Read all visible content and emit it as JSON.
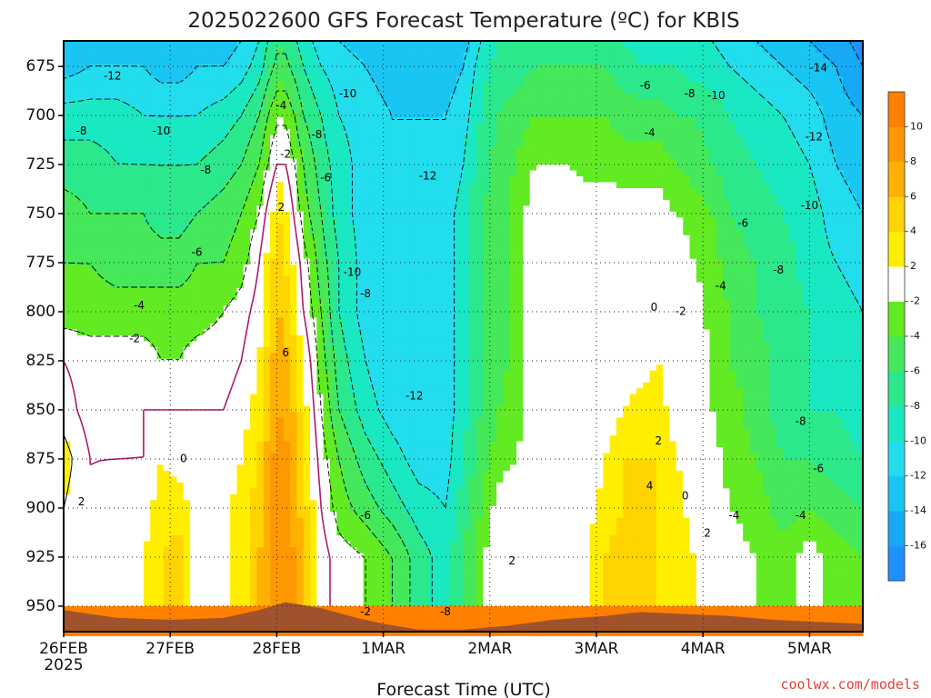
{
  "colors": {
    "cbar": [
      "#1e90ff",
      "#16aaf6",
      "#19c5f2",
      "#22ddee",
      "#19e8c2",
      "#2be88c",
      "#44e85a",
      "#62ea22",
      "#ffffff",
      "#ffee00",
      "#ffd400",
      "#ffb000",
      "#ff9800",
      "#ff8000"
    ],
    "terrain": "#a0522d",
    "contour_zero": "#b0196e",
    "contour_other": "#000000"
  },
  "chart_data": {
    "type": "heatmap",
    "title": "2025022600 GFS Forecast Temperature (ºC) for KBIS",
    "xlabel": "Forecast Time (UTC)",
    "ylabel": "",
    "credit": "coolwx.com/models",
    "x_ticks": [
      {
        "label": "26FEB",
        "sub": "2025",
        "hour": 0
      },
      {
        "label": "27FEB",
        "sub": "",
        "hour": 24
      },
      {
        "label": "28FEB",
        "sub": "",
        "hour": 48
      },
      {
        "label": "1MAR",
        "sub": "",
        "hour": 72
      },
      {
        "label": "2MAR",
        "sub": "",
        "hour": 96
      },
      {
        "label": "3MAR",
        "sub": "",
        "hour": 120
      },
      {
        "label": "4MAR",
        "sub": "",
        "hour": 144
      },
      {
        "label": "5MAR",
        "sub": "",
        "hour": 168
      }
    ],
    "x_range_hours": [
      0,
      180
    ],
    "y_ticks": [
      "675",
      "700",
      "725",
      "750",
      "775",
      "800",
      "825",
      "850",
      "875",
      "900",
      "925",
      "950"
    ],
    "y_values": [
      675,
      700,
      725,
      750,
      775,
      800,
      825,
      850,
      875,
      900,
      925,
      950
    ],
    "y_range_hpa": [
      662,
      963
    ],
    "colorbar": {
      "bounds": [
        -18,
        -16,
        -14,
        -12,
        -10,
        -8,
        -6,
        -4,
        -2,
        2,
        4,
        6,
        8,
        10,
        12
      ],
      "labels": [
        "-16",
        "-14",
        "-12",
        "-10",
        "-8",
        "-6",
        "-4",
        "-2",
        "2",
        "4",
        "6",
        "8",
        "10"
      ]
    },
    "grid": true,
    "temperature_profiles": [
      {
        "hour": 0,
        "t": [
          -13,
          -9,
          -7,
          -5,
          -4,
          -3,
          0,
          1,
          3,
          2,
          2
        ]
      },
      {
        "hour": 6,
        "t": [
          -12,
          -9,
          -7,
          -6,
          -4,
          -3,
          -1,
          -1,
          0,
          0,
          0
        ]
      },
      {
        "hour": 12,
        "t": [
          -12,
          -9,
          -8,
          -6,
          -5,
          -3,
          -1,
          -1,
          0,
          1,
          1
        ]
      },
      {
        "hour": 18,
        "t": [
          -12,
          -10,
          -8,
          -6,
          -5,
          -3,
          -1,
          0,
          0,
          1,
          2
        ]
      },
      {
        "hour": 22,
        "t": [
          -13,
          -10,
          -8,
          -7,
          -5,
          -3,
          -2,
          0,
          2,
          3,
          4
        ]
      },
      {
        "hour": 26,
        "t": [
          -13,
          -10,
          -8,
          -7,
          -5,
          -3,
          -2,
          0,
          1,
          3,
          5
        ]
      },
      {
        "hour": 30,
        "t": [
          -12,
          -10,
          -8,
          -6,
          -4,
          -3,
          -1,
          0,
          1,
          1,
          1
        ]
      },
      {
        "hour": 36,
        "t": [
          -12,
          -9,
          -7,
          -5,
          -4,
          -2,
          -1,
          0,
          1,
          1,
          1
        ]
      },
      {
        "hour": 40,
        "t": [
          -11,
          -8,
          -6,
          -4,
          -3,
          -1,
          0,
          1,
          2,
          3,
          3
        ]
      },
      {
        "hour": 44,
        "t": [
          -9,
          -6,
          -4,
          -2,
          0,
          1,
          2,
          3,
          4,
          5,
          6
        ]
      },
      {
        "hour": 47,
        "t": [
          -6,
          -3,
          -1,
          2,
          4,
          5,
          6,
          7,
          8,
          8,
          8
        ]
      },
      {
        "hour": 49,
        "t": [
          -5,
          -2,
          1,
          4,
          5,
          6,
          7,
          8,
          9,
          10,
          10
        ]
      },
      {
        "hour": 51,
        "t": [
          -6,
          -3,
          -1,
          1,
          3,
          4,
          6,
          7,
          8,
          8,
          9
        ]
      },
      {
        "hour": 54,
        "t": [
          -8,
          -6,
          -4,
          -3,
          -1,
          0,
          2,
          3,
          4,
          5,
          6
        ]
      },
      {
        "hour": 58,
        "t": [
          -10,
          -8,
          -7,
          -6,
          -5,
          -4,
          -3,
          -2,
          -1,
          0,
          1
        ]
      },
      {
        "hour": 62,
        "t": [
          -11,
          -10,
          -9,
          -9,
          -8,
          -8,
          -7,
          -6,
          -4,
          -3,
          -1
        ]
      },
      {
        "hour": 68,
        "t": [
          -12,
          -11,
          -11,
          -11,
          -11,
          -11,
          -10,
          -9,
          -7,
          -5,
          -2
        ]
      },
      {
        "hour": 74,
        "t": [
          -13,
          -12,
          -12,
          -12,
          -12,
          -12,
          -12,
          -11,
          -9,
          -7,
          -4
        ]
      },
      {
        "hour": 80,
        "t": [
          -13,
          -12,
          -12,
          -12,
          -12,
          -12,
          -12,
          -12,
          -11,
          -9,
          -7
        ]
      },
      {
        "hour": 86,
        "t": [
          -13,
          -12,
          -12,
          -11,
          -11,
          -11,
          -11,
          -11,
          -11,
          -10,
          -9
        ]
      },
      {
        "hour": 90,
        "t": [
          -12,
          -11,
          -10,
          -9,
          -9,
          -9,
          -9,
          -9,
          -8,
          -7,
          -6
        ]
      },
      {
        "hour": 94,
        "t": [
          -9,
          -8,
          -7,
          -6,
          -6,
          -6,
          -6,
          -6,
          -5,
          -4,
          -3
        ]
      },
      {
        "hour": 98,
        "t": [
          -7,
          -6,
          -5,
          -5,
          -5,
          -5,
          -5,
          -4,
          -3,
          -1,
          1
        ]
      },
      {
        "hour": 102,
        "t": [
          -7,
          -5,
          -4,
          -3,
          -3,
          -3,
          -3,
          -3,
          -2,
          0,
          2
        ]
      },
      {
        "hour": 106,
        "t": [
          -6,
          -4,
          -2,
          -1,
          0,
          0,
          -1,
          -1,
          0,
          0,
          0
        ]
      },
      {
        "hour": 110,
        "t": [
          -6,
          -4,
          -2,
          0,
          0,
          0,
          0,
          0,
          0,
          1,
          0
        ]
      },
      {
        "hour": 114,
        "t": [
          -6,
          -4,
          -2,
          0,
          0,
          1,
          1,
          1,
          0,
          0,
          0
        ]
      },
      {
        "hour": 118,
        "t": [
          -6,
          -4,
          -3,
          0,
          0,
          1,
          1,
          0,
          0,
          1,
          2
        ]
      },
      {
        "hour": 122,
        "t": [
          -6,
          -4,
          -3,
          0,
          0,
          0,
          0,
          0,
          2,
          3,
          4
        ]
      },
      {
        "hour": 126,
        "t": [
          -7,
          -5,
          -3,
          -1,
          0,
          0,
          0,
          2,
          4,
          4,
          5
        ]
      },
      {
        "hour": 130,
        "t": [
          -8,
          -5,
          -3,
          -1,
          0,
          0,
          1,
          3,
          4,
          5,
          5
        ]
      },
      {
        "hour": 134,
        "t": [
          -8,
          -5,
          -3,
          -1,
          0,
          1,
          2,
          3,
          4,
          4,
          4
        ]
      },
      {
        "hour": 138,
        "t": [
          -8,
          -6,
          -4,
          -2,
          0,
          0,
          0,
          1,
          2,
          3,
          3
        ]
      },
      {
        "hour": 142,
        "t": [
          -9,
          -6,
          -5,
          -3,
          -2,
          -1,
          0,
          0,
          1,
          1,
          2
        ]
      },
      {
        "hour": 146,
        "t": [
          -9,
          -7,
          -6,
          -4,
          -3,
          -3,
          -2,
          -2,
          -1,
          0,
          0
        ]
      },
      {
        "hour": 150,
        "t": [
          -10,
          -8,
          -7,
          -6,
          -5,
          -4,
          -4,
          -3,
          -3,
          -2,
          -1
        ]
      },
      {
        "hour": 156,
        "t": [
          -11,
          -9,
          -8,
          -7,
          -6,
          -6,
          -5,
          -5,
          -4,
          -3,
          -2
        ]
      },
      {
        "hour": 162,
        "t": [
          -12,
          -10,
          -9,
          -8,
          -7,
          -7,
          -7,
          -7,
          -6,
          -5,
          -3
        ]
      },
      {
        "hour": 168,
        "t": [
          -13,
          -11,
          -10,
          -9,
          -9,
          -8,
          -8,
          -8,
          -6,
          -4,
          -1
        ]
      },
      {
        "hour": 174,
        "t": [
          -14,
          -13,
          -12,
          -11,
          -10,
          -9,
          -9,
          -8,
          -7,
          -5,
          -3
        ]
      },
      {
        "hour": 180,
        "t": [
          -16,
          -14,
          -13,
          -12,
          -11,
          -10,
          -10,
          -9,
          -8,
          -6,
          -4
        ]
      }
    ],
    "surface_pressure": [
      {
        "hour": 0,
        "p": 952
      },
      {
        "hour": 12,
        "p": 956
      },
      {
        "hour": 24,
        "p": 957
      },
      {
        "hour": 36,
        "p": 956
      },
      {
        "hour": 44,
        "p": 952
      },
      {
        "hour": 50,
        "p": 948
      },
      {
        "hour": 58,
        "p": 951
      },
      {
        "hour": 66,
        "p": 956
      },
      {
        "hour": 72,
        "p": 959
      },
      {
        "hour": 80,
        "p": 962
      },
      {
        "hour": 90,
        "p": 962
      },
      {
        "hour": 100,
        "p": 960
      },
      {
        "hour": 110,
        "p": 957
      },
      {
        "hour": 122,
        "p": 955
      },
      {
        "hour": 130,
        "p": 953
      },
      {
        "hour": 140,
        "p": 954
      },
      {
        "hour": 150,
        "p": 955
      },
      {
        "hour": 160,
        "p": 957
      },
      {
        "hour": 170,
        "p": 958
      },
      {
        "hour": 180,
        "p": 959
      }
    ],
    "contour_labels": [
      {
        "text": "-12",
        "hour": 11,
        "p": 680
      },
      {
        "text": "-8",
        "hour": 4,
        "p": 708
      },
      {
        "text": "-10",
        "hour": 22,
        "p": 708
      },
      {
        "text": "-8",
        "hour": 32,
        "p": 728
      },
      {
        "text": "-6",
        "hour": 30,
        "p": 770
      },
      {
        "text": "-4",
        "hour": 17,
        "p": 797
      },
      {
        "text": "-2",
        "hour": 16,
        "p": 814
      },
      {
        "text": "-4",
        "hour": 49,
        "p": 695
      },
      {
        "text": "-2",
        "hour": 50,
        "p": 720
      },
      {
        "text": "2",
        "hour": 49,
        "p": 747
      },
      {
        "text": "6",
        "hour": 50,
        "p": 821
      },
      {
        "text": "0",
        "hour": 27,
        "p": 875
      },
      {
        "text": "2",
        "hour": 4,
        "p": 897
      },
      {
        "text": "-10",
        "hour": 64,
        "p": 689
      },
      {
        "text": "-8",
        "hour": 57,
        "p": 710
      },
      {
        "text": "-6",
        "hour": 59,
        "p": 732
      },
      {
        "text": "-10",
        "hour": 65,
        "p": 780
      },
      {
        "text": "-8",
        "hour": 68,
        "p": 791
      },
      {
        "text": "-12",
        "hour": 82,
        "p": 731
      },
      {
        "text": "-12",
        "hour": 79,
        "p": 843
      },
      {
        "text": "-6",
        "hour": 68,
        "p": 904
      },
      {
        "text": "-2",
        "hour": 68,
        "p": 953
      },
      {
        "text": "-8",
        "hour": 86,
        "p": 953
      },
      {
        "text": "2",
        "hour": 101,
        "p": 927
      },
      {
        "text": "-6",
        "hour": 131,
        "p": 685
      },
      {
        "text": "-8",
        "hour": 141,
        "p": 689
      },
      {
        "text": "-10",
        "hour": 147,
        "p": 690
      },
      {
        "text": "-4",
        "hour": 132,
        "p": 709
      },
      {
        "text": "0",
        "hour": 133,
        "p": 798
      },
      {
        "text": "-2",
        "hour": 139,
        "p": 800
      },
      {
        "text": "-4",
        "hour": 148,
        "p": 787
      },
      {
        "text": "2",
        "hour": 134,
        "p": 866
      },
      {
        "text": "4",
        "hour": 132,
        "p": 889
      },
      {
        "text": "0",
        "hour": 140,
        "p": 894
      },
      {
        "text": "2",
        "hour": 145,
        "p": 913
      },
      {
        "text": "-4",
        "hour": 151,
        "p": 904
      },
      {
        "text": "-6",
        "hour": 153,
        "p": 755
      },
      {
        "text": "-8",
        "hour": 161,
        "p": 779
      },
      {
        "text": "-10",
        "hour": 168,
        "p": 746
      },
      {
        "text": "-12",
        "hour": 169,
        "p": 711
      },
      {
        "text": "-14",
        "hour": 170,
        "p": 676
      },
      {
        "text": "-8",
        "hour": 166,
        "p": 856
      },
      {
        "text": "-6",
        "hour": 170,
        "p": 880
      },
      {
        "text": "-4",
        "hour": 166,
        "p": 904
      }
    ]
  }
}
